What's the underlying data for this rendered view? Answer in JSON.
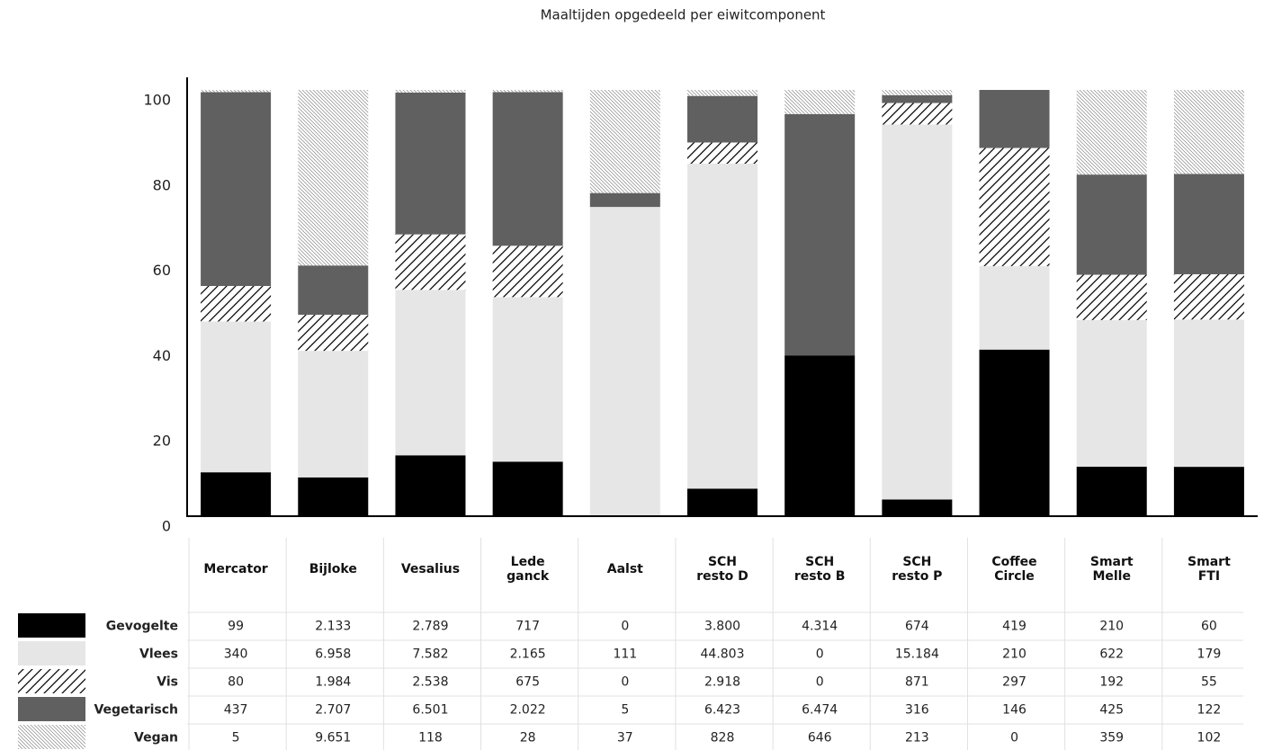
{
  "chart_data": {
    "type": "bar",
    "stacked": "percent",
    "title": "Maaltijden opgedeeld per eiwitcomponent",
    "categories": [
      "Mercator",
      "Bijloke",
      "Vesalius",
      "Lede\nganck",
      "Aalst",
      "SCH\nresto D",
      "SCH\nresto B",
      "SCH\nresto P",
      "Coffee\nCircle",
      "Smart\nMelle",
      "Smart\nFTI"
    ],
    "ylim": [
      0,
      100
    ],
    "yticks": [
      0,
      20,
      40,
      60,
      80,
      100
    ],
    "series": [
      {
        "name": "Gevogelte",
        "color": "#000000",
        "pattern": "solid",
        "values": [
          99,
          2133,
          2789,
          717,
          0,
          3800,
          4314,
          674,
          419,
          210,
          60
        ],
        "value_labels": [
          "99",
          "2.133",
          "2.789",
          "717",
          "0",
          "3.800",
          "4.314",
          "674",
          "419",
          "210",
          "60"
        ]
      },
      {
        "name": "Vlees",
        "color": "#e6e6e6",
        "pattern": "solid",
        "values": [
          340,
          6958,
          7582,
          2165,
          111,
          44803,
          0,
          15184,
          210,
          622,
          179
        ],
        "value_labels": [
          "340",
          "6.958",
          "7.582",
          "2.165",
          "111",
          "44.803",
          "0",
          "15.184",
          "210",
          "622",
          "179"
        ]
      },
      {
        "name": "Vis",
        "color": "#000000",
        "pattern": "hatch",
        "values": [
          80,
          1984,
          2538,
          675,
          0,
          2918,
          0,
          871,
          297,
          192,
          55
        ],
        "value_labels": [
          "80",
          "1.984",
          "2.538",
          "675",
          "0",
          "2.918",
          "0",
          "871",
          "297",
          "192",
          "55"
        ]
      },
      {
        "name": "Vegetarisch",
        "color": "#606060",
        "pattern": "solid",
        "values": [
          437,
          2707,
          6501,
          2022,
          5,
          6423,
          6474,
          316,
          146,
          425,
          122
        ],
        "value_labels": [
          "437",
          "2.707",
          "6.501",
          "2.022",
          "5",
          "6.423",
          "6.474",
          "316",
          "146",
          "425",
          "122"
        ]
      },
      {
        "name": "Vegan",
        "color": "#8a8a8a",
        "pattern": "fine-hatch",
        "values": [
          5,
          9651,
          118,
          28,
          37,
          828,
          646,
          213,
          0,
          359,
          102
        ],
        "value_labels": [
          "5",
          "9.651",
          "118",
          "28",
          "37",
          "828",
          "646",
          "213",
          "0",
          "359",
          "102"
        ]
      }
    ]
  }
}
